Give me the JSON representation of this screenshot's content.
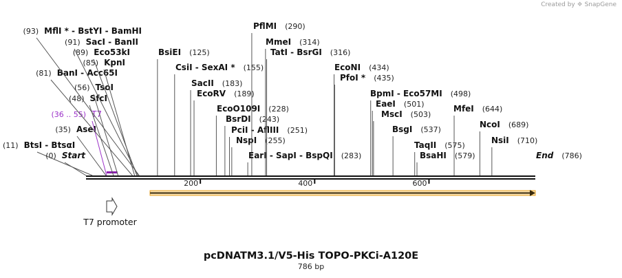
{
  "credit": {
    "text": "Created by",
    "brand": "SnapGene"
  },
  "map": {
    "title": "pcDNATM3.1/V5-His TOPO-PKCi-A120E",
    "length": "786 bp",
    "total_bp": 786,
    "axis_ticks": [
      {
        "bp": 200,
        "label": "200"
      },
      {
        "bp": 400,
        "label": "400"
      },
      {
        "bp": 600,
        "label": "600"
      }
    ],
    "promoter": {
      "name": "T7 promoter",
      "start_bp": 36,
      "end_bp": 55,
      "color": "#8b21ae"
    },
    "orf": {
      "start_bp": 112,
      "end_bp": 786,
      "color": "#e9a21e"
    },
    "sites": [
      {
        "id": "btsi",
        "name": "BtsI  -  BtsαI",
        "pos": "(11)",
        "bp": 11,
        "bold": true
      },
      {
        "id": "start",
        "name": "Start",
        "pos": "(0)",
        "bp": 0,
        "bold": true,
        "italic": true
      },
      {
        "id": "asei",
        "name": "AseI",
        "pos": "(35)",
        "bp": 35,
        "bold": true
      },
      {
        "id": "t7",
        "name": "T7",
        "pos": "(36 .. 55)",
        "bp": 36,
        "bold": false,
        "color": "#9b30c8"
      },
      {
        "id": "sfci",
        "name": "SfcI",
        "pos": "(48)",
        "bp": 48,
        "bold": true
      },
      {
        "id": "tsoi",
        "name": "TsoI",
        "pos": "(56)",
        "bp": 56,
        "bold": true
      },
      {
        "id": "bani",
        "name": "BanI  -  Acc65I",
        "pos": "(81)",
        "bp": 81,
        "bold": true
      },
      {
        "id": "kpni",
        "name": "KpnI",
        "pos": "(85)",
        "bp": 85,
        "bold": true
      },
      {
        "id": "eco53ki",
        "name": "Eco53kI",
        "pos": "(89)",
        "bp": 89,
        "bold": true
      },
      {
        "id": "saci",
        "name": "SacI  -  BanII",
        "pos": "(91)",
        "bp": 91,
        "bold": true
      },
      {
        "id": "mfli",
        "name": "MflI *  -  BstYI  -  BamHI",
        "pos": "(93)",
        "bp": 93,
        "bold": true
      },
      {
        "id": "bsiei",
        "name": "BsiEI",
        "pos": "(125)",
        "bp": 125,
        "bold": true
      },
      {
        "id": "csii",
        "name": "CsiI  -  SexAI *",
        "pos": "(155)",
        "bp": 155,
        "bold": true
      },
      {
        "id": "sacii",
        "name": "SacII",
        "pos": "(183)",
        "bp": 183,
        "bold": true
      },
      {
        "id": "ecorv",
        "name": "EcoRV",
        "pos": "(189)",
        "bp": 189,
        "bold": true
      },
      {
        "id": "ecoo109i",
        "name": "EcoO109I",
        "pos": "(228)",
        "bp": 228,
        "bold": true
      },
      {
        "id": "bsrdi",
        "name": "BsrDI",
        "pos": "(243)",
        "bp": 243,
        "bold": true
      },
      {
        "id": "pcli",
        "name": "PciI  -  AflIII",
        "pos": "(251)",
        "bp": 251,
        "bold": true
      },
      {
        "id": "nspi",
        "name": "NspI",
        "pos": "(255)",
        "bp": 255,
        "bold": true
      },
      {
        "id": "pflmi",
        "name": "PflMI",
        "pos": "(290)",
        "bp": 290,
        "bold": true
      },
      {
        "id": "mmei",
        "name": "MmeI",
        "pos": "(314)",
        "bp": 314,
        "bold": true
      },
      {
        "id": "tati",
        "name": "TatI  -  BsrGI",
        "pos": "(316)",
        "bp": 316,
        "bold": true
      },
      {
        "id": "eari",
        "name": "EarI  -  SapI  -  BspQI",
        "pos": "(283)",
        "bp": 283,
        "bold": true
      },
      {
        "id": "econi",
        "name": "EcoNI",
        "pos": "(434)",
        "bp": 434,
        "bold": true
      },
      {
        "id": "pfoi",
        "name": "PfoI *",
        "pos": "(435)",
        "bp": 435,
        "bold": true
      },
      {
        "id": "bpmi",
        "name": "BpmI  -  Eco57MI",
        "pos": "(498)",
        "bp": 498,
        "bold": true
      },
      {
        "id": "eaei",
        "name": "EaeI",
        "pos": "(501)",
        "bp": 501,
        "bold": true
      },
      {
        "id": "msci",
        "name": "MscI",
        "pos": "(503)",
        "bp": 503,
        "bold": true
      },
      {
        "id": "bsgi",
        "name": "BsgI",
        "pos": "(537)",
        "bp": 537,
        "bold": true
      },
      {
        "id": "taqii",
        "name": "TaqII",
        "pos": "(575)",
        "bp": 575,
        "bold": true
      },
      {
        "id": "bsahi",
        "name": "BsaHI",
        "pos": "(579)",
        "bp": 579,
        "bold": true
      },
      {
        "id": "mfei",
        "name": "MfeI",
        "pos": "(644)",
        "bp": 644,
        "bold": true
      },
      {
        "id": "ncoi",
        "name": "NcoI",
        "pos": "(689)",
        "bp": 689,
        "bold": true
      },
      {
        "id": "nsii",
        "name": "NsiI",
        "pos": "(710)",
        "bp": 710,
        "bold": true
      },
      {
        "id": "end",
        "name": "End",
        "pos": "(786)",
        "bp": 786,
        "bold": true,
        "italic": true
      }
    ]
  }
}
